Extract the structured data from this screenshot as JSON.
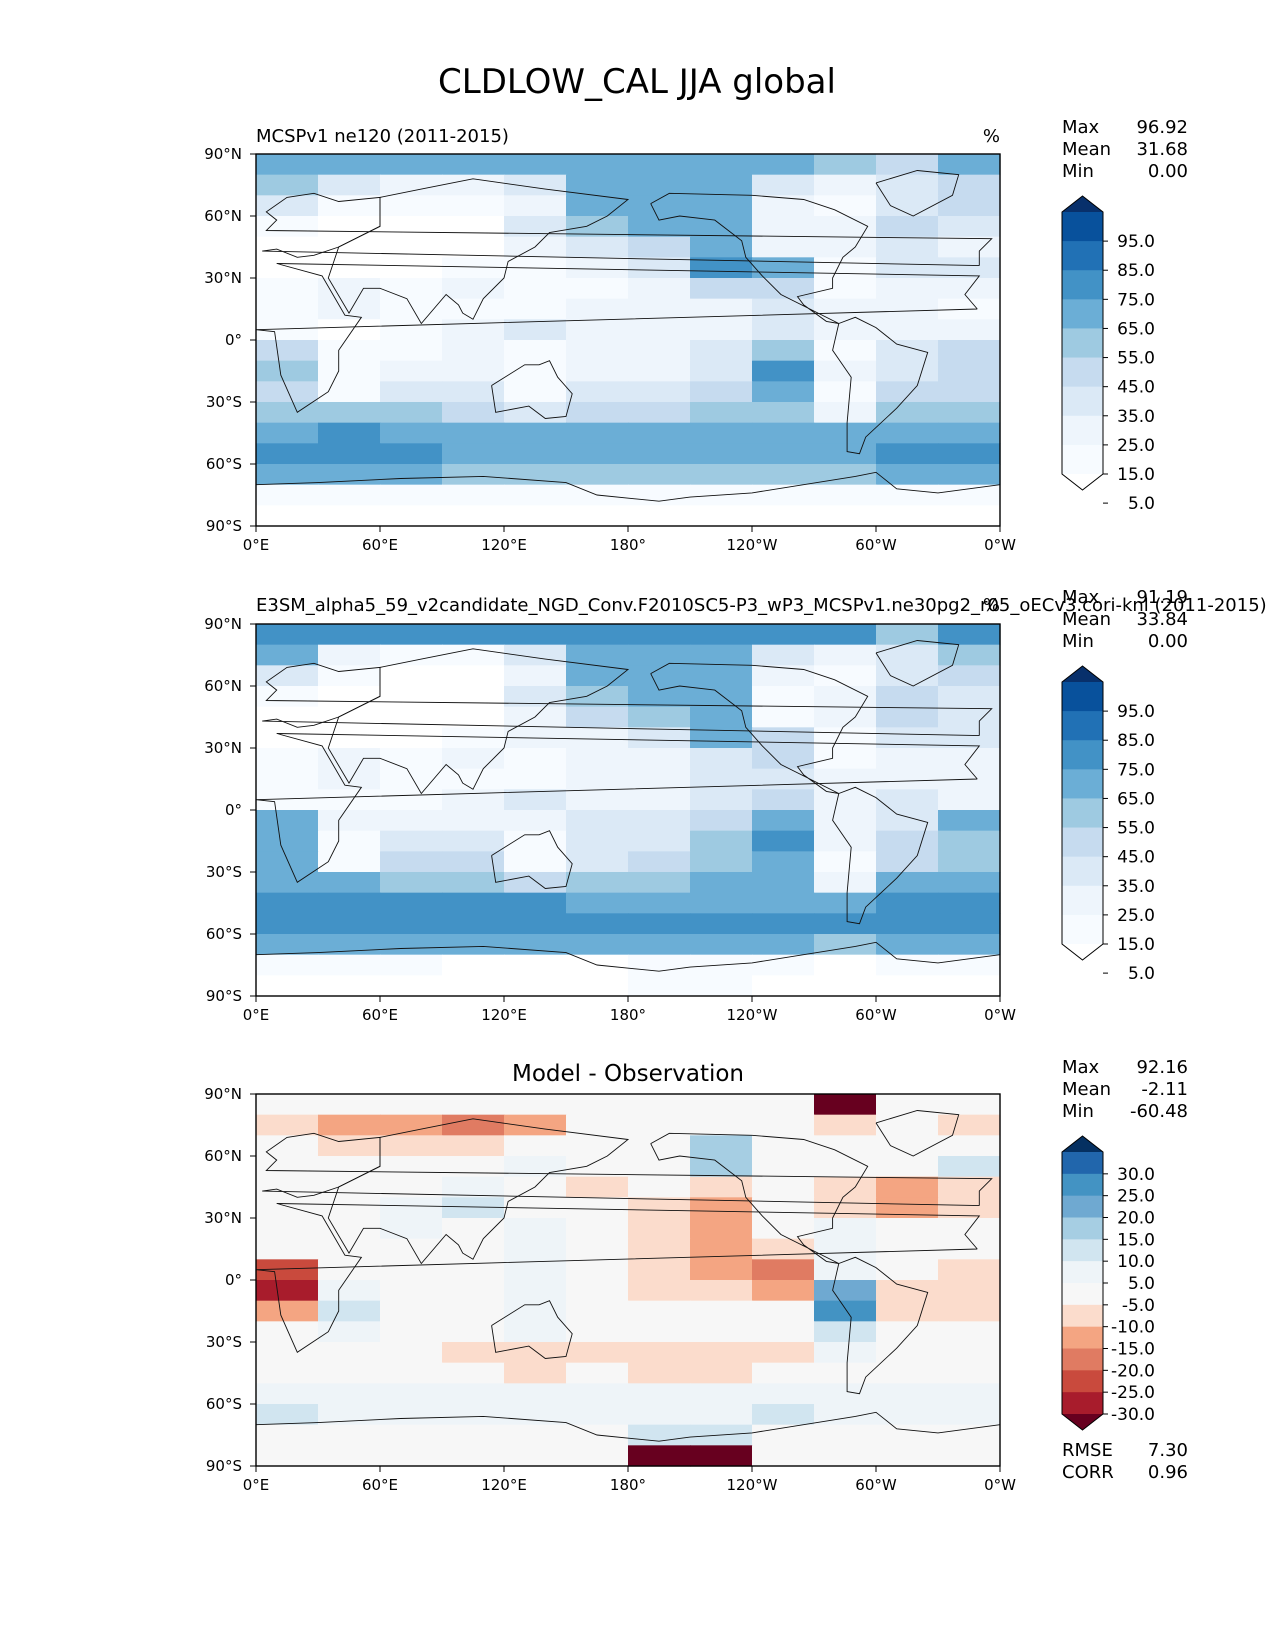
{
  "figure": {
    "title": "CLDLOW_CAL JJA global"
  },
  "chart_data": [
    {
      "type": "heatmap",
      "title_left": "MCSPv1 ne120 (2011-2015)",
      "title_right": "%",
      "units": "%",
      "xticks": [
        "0°E",
        "60°E",
        "120°E",
        "180°",
        "120°W",
        "60°W",
        "0°W"
      ],
      "yticks": [
        "90°N",
        "60°N",
        "30°N",
        "0°",
        "30°S",
        "60°S",
        "90°S"
      ],
      "xlim": [
        0,
        360
      ],
      "ylim": [
        -90,
        90
      ],
      "stats": [
        {
          "label": "Max",
          "value": "96.92"
        },
        {
          "label": "Mean",
          "value": "31.68"
        },
        {
          "label": "Min",
          "value": "0.00"
        }
      ],
      "colorbar": {
        "labels": [
          "95.0",
          "85.0",
          "75.0",
          "65.0",
          "55.0",
          "45.0",
          "35.0",
          "25.0",
          "15.0",
          "5.0"
        ],
        "colors": [
          "#08306b",
          "#08519c",
          "#2171b5",
          "#4292c6",
          "#6baed6",
          "#9ecae1",
          "#c6dbef",
          "#dbe9f6",
          "#eef5fc",
          "#f7fbff",
          "#ffffff"
        ]
      },
      "value_scale": [
        0,
        100
      ],
      "field": {
        "lat": [
          85,
          75,
          65,
          55,
          45,
          35,
          25,
          15,
          5,
          -5,
          -15,
          -25,
          -35,
          -45,
          -55,
          -65,
          -75,
          -85
        ],
        "lon": [
          15,
          45,
          75,
          105,
          135,
          165,
          195,
          225,
          255,
          285,
          315,
          345
        ],
        "values": [
          [
            62,
            60,
            58,
            57,
            56,
            58,
            60,
            60,
            58,
            48,
            40,
            55
          ],
          [
            48,
            30,
            22,
            20,
            28,
            55,
            62,
            55,
            30,
            22,
            30,
            45
          ],
          [
            30,
            15,
            10,
            10,
            22,
            55,
            62,
            55,
            20,
            18,
            35,
            40
          ],
          [
            15,
            8,
            6,
            8,
            35,
            50,
            55,
            55,
            20,
            25,
            40,
            30
          ],
          [
            8,
            5,
            4,
            6,
            20,
            35,
            45,
            60,
            20,
            20,
            35,
            25
          ],
          [
            5,
            8,
            5,
            10,
            18,
            22,
            30,
            70,
            55,
            12,
            30,
            30
          ],
          [
            10,
            25,
            18,
            25,
            15,
            18,
            22,
            40,
            45,
            12,
            25,
            20
          ],
          [
            12,
            20,
            15,
            10,
            15,
            20,
            22,
            25,
            30,
            20,
            20,
            15
          ],
          [
            10,
            8,
            15,
            20,
            28,
            20,
            22,
            25,
            35,
            20,
            25,
            20
          ],
          [
            40,
            18,
            15,
            22,
            18,
            22,
            22,
            30,
            50,
            18,
            30,
            45
          ],
          [
            50,
            12,
            22,
            22,
            12,
            22,
            25,
            35,
            65,
            20,
            35,
            40
          ],
          [
            45,
            10,
            32,
            30,
            10,
            28,
            30,
            40,
            60,
            12,
            40,
            40
          ],
          [
            48,
            50,
            48,
            42,
            32,
            40,
            42,
            48,
            52,
            22,
            50,
            50
          ],
          [
            62,
            65,
            62,
            60,
            58,
            55,
            55,
            58,
            60,
            55,
            62,
            62
          ],
          [
            65,
            68,
            65,
            62,
            60,
            62,
            62,
            62,
            62,
            62,
            65,
            65
          ],
          [
            55,
            58,
            55,
            50,
            50,
            52,
            52,
            52,
            50,
            50,
            55,
            55
          ],
          [
            15,
            15,
            12,
            10,
            10,
            10,
            15,
            15,
            12,
            10,
            12,
            15
          ],
          [
            5,
            5,
            5,
            5,
            5,
            5,
            5,
            5,
            5,
            5,
            5,
            5
          ]
        ]
      }
    },
    {
      "type": "heatmap",
      "title_left": "E3SM_alpha5_59_v2candidate_NGD_Conv.F2010SC5-P3_wP3_MCSPv1.ne30pg2_r05_oECv3.cori-knl (2011-2015)",
      "title_right": "%",
      "units": "%",
      "xticks": [
        "0°E",
        "60°E",
        "120°E",
        "180°",
        "120°W",
        "60°W",
        "0°W"
      ],
      "yticks": [
        "90°N",
        "60°N",
        "30°N",
        "0°",
        "30°S",
        "60°S",
        "90°S"
      ],
      "xlim": [
        0,
        360
      ],
      "ylim": [
        -90,
        90
      ],
      "stats": [
        {
          "label": "Max",
          "value": "91.19"
        },
        {
          "label": "Mean",
          "value": "33.84"
        },
        {
          "label": "Min",
          "value": "0.00"
        }
      ],
      "colorbar": {
        "labels": [
          "95.0",
          "85.0",
          "75.0",
          "65.0",
          "55.0",
          "45.0",
          "35.0",
          "25.0",
          "15.0",
          "5.0"
        ],
        "colors": [
          "#08306b",
          "#08519c",
          "#2171b5",
          "#4292c6",
          "#6baed6",
          "#9ecae1",
          "#c6dbef",
          "#dbe9f6",
          "#eef5fc",
          "#f7fbff",
          "#ffffff"
        ]
      },
      "value_scale": [
        0,
        100
      ],
      "field": {
        "lat": [
          85,
          75,
          65,
          55,
          45,
          35,
          25,
          15,
          5,
          -5,
          -15,
          -25,
          -35,
          -45,
          -55,
          -65,
          -75,
          -85
        ],
        "lon": [
          15,
          45,
          75,
          105,
          135,
          165,
          195,
          225,
          255,
          285,
          315,
          345
        ],
        "values": [
          [
            72,
            70,
            68,
            66,
            65,
            66,
            68,
            68,
            66,
            70,
            50,
            66
          ],
          [
            55,
            22,
            18,
            18,
            35,
            55,
            60,
            55,
            30,
            20,
            28,
            52
          ],
          [
            30,
            12,
            8,
            8,
            25,
            55,
            60,
            58,
            20,
            18,
            35,
            45
          ],
          [
            12,
            8,
            5,
            6,
            35,
            50,
            58,
            55,
            18,
            22,
            40,
            35
          ],
          [
            6,
            4,
            3,
            5,
            22,
            38,
            48,
            62,
            18,
            20,
            40,
            30
          ],
          [
            5,
            8,
            4,
            10,
            20,
            25,
            32,
            60,
            45,
            12,
            30,
            30
          ],
          [
            10,
            22,
            15,
            25,
            18,
            20,
            25,
            35,
            40,
            15,
            25,
            25
          ],
          [
            12,
            22,
            18,
            12,
            18,
            22,
            25,
            28,
            30,
            22,
            25,
            20
          ],
          [
            15,
            10,
            18,
            22,
            32,
            25,
            25,
            30,
            40,
            25,
            30,
            25
          ],
          [
            55,
            20,
            22,
            25,
            20,
            28,
            28,
            40,
            60,
            22,
            35,
            55
          ],
          [
            60,
            15,
            30,
            28,
            15,
            30,
            35,
            50,
            68,
            25,
            40,
            50
          ],
          [
            55,
            12,
            40,
            38,
            12,
            35,
            40,
            52,
            62,
            15,
            45,
            48
          ],
          [
            55,
            55,
            52,
            48,
            38,
            48,
            48,
            55,
            58,
            25,
            55,
            55
          ],
          [
            68,
            70,
            68,
            65,
            65,
            62,
            60,
            62,
            62,
            62,
            66,
            66
          ],
          [
            70,
            72,
            70,
            68,
            66,
            66,
            66,
            66,
            66,
            66,
            70,
            70
          ],
          [
            60,
            62,
            58,
            55,
            55,
            55,
            55,
            55,
            55,
            52,
            58,
            58
          ],
          [
            12,
            12,
            10,
            8,
            8,
            8,
            12,
            12,
            10,
            8,
            10,
            12
          ],
          [
            4,
            4,
            4,
            4,
            4,
            4,
            15,
            15,
            4,
            4,
            4,
            4
          ]
        ]
      }
    },
    {
      "type": "heatmap",
      "title_center": "Model - Observation",
      "xticks": [
        "0°E",
        "60°E",
        "120°E",
        "180°",
        "120°W",
        "60°W",
        "0°W"
      ],
      "yticks": [
        "90°N",
        "60°N",
        "30°N",
        "0°",
        "30°S",
        "60°S",
        "90°S"
      ],
      "xlim": [
        0,
        360
      ],
      "ylim": [
        -90,
        90
      ],
      "stats": [
        {
          "label": "Max",
          "value": "92.16"
        },
        {
          "label": "Mean",
          "value": "-2.11"
        },
        {
          "label": "Min",
          "value": "-60.48"
        }
      ],
      "bottom_stats": [
        {
          "label": "RMSE",
          "value": "7.30"
        },
        {
          "label": "CORR",
          "value": "0.96"
        }
      ],
      "colorbar": {
        "labels": [
          "30.0",
          "25.0",
          "20.0",
          "15.0",
          "10.0",
          "5.0",
          "-5.0",
          "-10.0",
          "-15.0",
          "-20.0",
          "-25.0",
          "-30.0"
        ],
        "colors": [
          "#053061",
          "#2166ac",
          "#4393c3",
          "#6fa9d1",
          "#a6cee3",
          "#d1e5f0",
          "#eef4f8",
          "#f7f7f7",
          "#fbdccc",
          "#f4a582",
          "#e07b62",
          "#c94a3d",
          "#a81c2c",
          "#67001f"
        ]
      },
      "value_scale": [
        -35,
        35
      ],
      "field": {
        "lat": [
          85,
          75,
          65,
          55,
          45,
          35,
          25,
          15,
          5,
          -5,
          -15,
          -25,
          -35,
          -45,
          -55,
          -65,
          -75,
          -85
        ],
        "lon": [
          15,
          45,
          75,
          105,
          135,
          165,
          195,
          225,
          255,
          285,
          315,
          345
        ],
        "values": [
          [
            0,
            0,
            0,
            0,
            0,
            0,
            0,
            0,
            0,
            -30,
            0,
            0
          ],
          [
            -6,
            -10,
            -12,
            -18,
            -10,
            -4,
            -3,
            -2,
            0,
            -6,
            -4,
            -5
          ],
          [
            -4,
            -6,
            -6,
            -6,
            -4,
            -2,
            -2,
            12,
            -3,
            -3,
            -3,
            -3
          ],
          [
            -3,
            -4,
            -3,
            -3,
            2,
            -3,
            -4,
            15,
            -2,
            -3,
            -4,
            8
          ],
          [
            -2,
            -1,
            0,
            5,
            -3,
            -5,
            -4,
            -6,
            -2,
            -8,
            -10,
            -6
          ],
          [
            0,
            0,
            4,
            6,
            0,
            -2,
            -8,
            -12,
            -4,
            -6,
            -12,
            -8
          ],
          [
            0,
            0,
            2,
            0,
            2,
            -2,
            -6,
            -10,
            -4,
            4,
            0,
            -3
          ],
          [
            0,
            0,
            0,
            0,
            2,
            -3,
            -8,
            -10,
            -6,
            3,
            -2,
            -4
          ],
          [
            -20,
            0,
            0,
            0,
            2,
            -4,
            -8,
            -12,
            -15,
            4,
            -3,
            -6
          ],
          [
            -25,
            4,
            -3,
            -3,
            2,
            -4,
            -5,
            -6,
            -10,
            20,
            -8,
            -8
          ],
          [
            -10,
            8,
            -3,
            -2,
            3,
            -3,
            -4,
            -4,
            -3,
            25,
            -6,
            -5
          ],
          [
            -4,
            4,
            -3,
            -2,
            2,
            -2,
            -3,
            -3,
            -3,
            8,
            -4,
            -4
          ],
          [
            -4,
            -4,
            -4,
            -6,
            -5,
            -6,
            -5,
            -6,
            -6,
            2,
            -4,
            -4
          ],
          [
            -4,
            -4,
            -4,
            -4,
            -5,
            -4,
            -5,
            -5,
            -4,
            -3,
            -3,
            -3
          ],
          [
            2,
            3,
            5,
            5,
            5,
            4,
            3,
            4,
            5,
            5,
            3,
            3
          ],
          [
            6,
            5,
            4,
            4,
            4,
            4,
            4,
            5,
            6,
            5,
            4,
            5
          ],
          [
            0,
            0,
            0,
            0,
            0,
            0,
            8,
            10,
            0,
            0,
            0,
            0
          ],
          [
            0,
            0,
            0,
            0,
            0,
            -3,
            -30,
            -30,
            0,
            0,
            0,
            0
          ]
        ]
      }
    }
  ]
}
